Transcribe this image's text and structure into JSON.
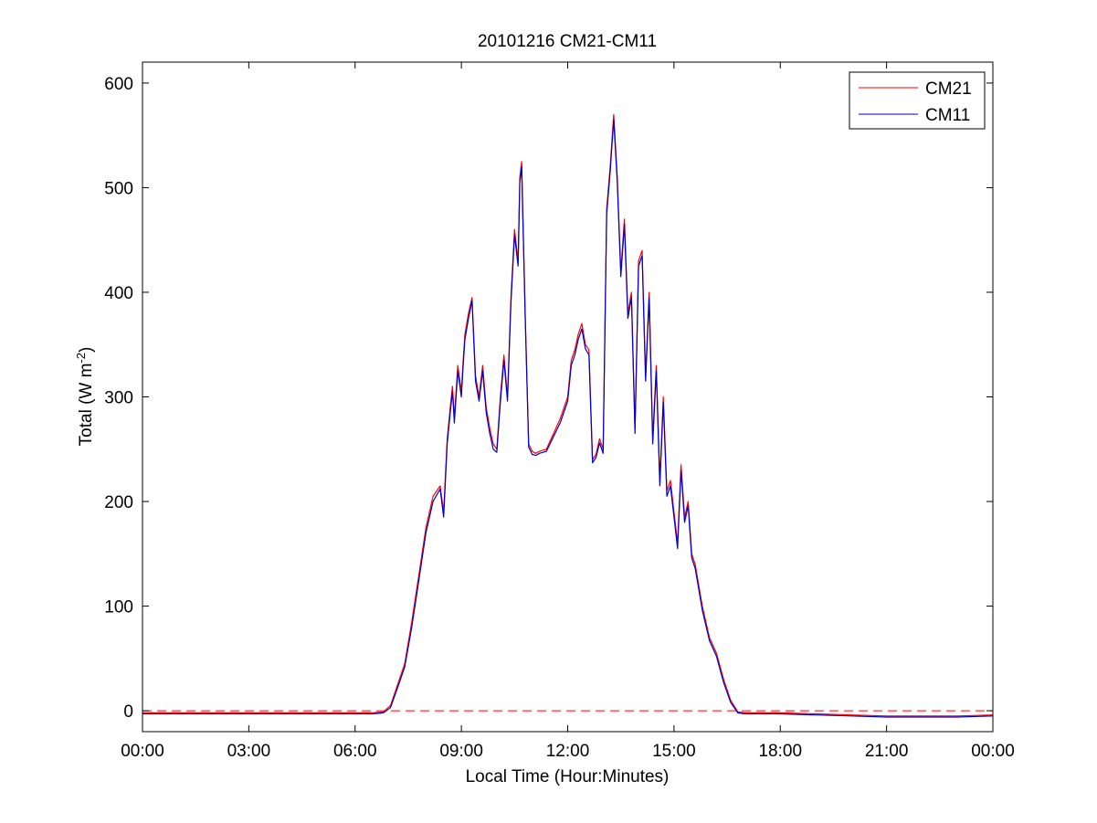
{
  "chart_data": {
    "type": "line",
    "title": "20101216 CM21-CM11",
    "xlabel": "Local Time (Hour:Minutes)",
    "ylabel": {
      "prefix": "Total (W m",
      "superscript": "-2",
      "suffix": ")"
    },
    "x_unit": "hours",
    "xlim": [
      0,
      24
    ],
    "ylim": [
      -20,
      620
    ],
    "x_ticks": [
      {
        "value": 0,
        "label": "00:00"
      },
      {
        "value": 3,
        "label": "03:00"
      },
      {
        "value": 6,
        "label": "06:00"
      },
      {
        "value": 9,
        "label": "09:00"
      },
      {
        "value": 12,
        "label": "12:00"
      },
      {
        "value": 15,
        "label": "15:00"
      },
      {
        "value": 18,
        "label": "18:00"
      },
      {
        "value": 21,
        "label": "21:00"
      },
      {
        "value": 24,
        "label": "00:00"
      }
    ],
    "y_ticks": [
      {
        "value": 0,
        "label": "0"
      },
      {
        "value": 100,
        "label": "100"
      },
      {
        "value": 200,
        "label": "200"
      },
      {
        "value": 300,
        "label": "300"
      },
      {
        "value": 400,
        "label": "400"
      },
      {
        "value": 500,
        "label": "500"
      },
      {
        "value": 600,
        "label": "600"
      }
    ],
    "grid": false,
    "legend_position": "top-right",
    "reference_line": {
      "y": 0,
      "style": "dashed",
      "color": "#ff0000"
    },
    "series": [
      {
        "name": "CM21",
        "color": "#ff0000",
        "x": [
          0,
          1,
          2,
          3,
          4,
          5,
          6,
          6.5,
          6.8,
          7,
          7.2,
          7.4,
          7.6,
          7.8,
          8,
          8.2,
          8.4,
          8.5,
          8.6,
          8.7,
          8.75,
          8.8,
          8.9,
          9,
          9.05,
          9.1,
          9.2,
          9.3,
          9.4,
          9.5,
          9.6,
          9.7,
          9.8,
          9.9,
          10,
          10.1,
          10.2,
          10.3,
          10.4,
          10.5,
          10.6,
          10.65,
          10.7,
          10.8,
          10.9,
          11,
          11.1,
          11.2,
          11.4,
          11.6,
          11.8,
          12,
          12.1,
          12.2,
          12.3,
          12.4,
          12.5,
          12.6,
          12.7,
          12.8,
          12.9,
          13,
          13.1,
          13.2,
          13.3,
          13.4,
          13.5,
          13.6,
          13.7,
          13.8,
          13.9,
          14,
          14.1,
          14.2,
          14.3,
          14.4,
          14.5,
          14.6,
          14.7,
          14.8,
          14.9,
          15,
          15.1,
          15.2,
          15.3,
          15.4,
          15.5,
          15.6,
          15.7,
          15.8,
          16,
          16.2,
          16.4,
          16.6,
          16.8,
          17,
          17.2,
          17.5,
          18,
          19,
          20,
          21,
          22,
          23,
          24
        ],
        "values": [
          -2,
          -2,
          -2,
          -2,
          -2,
          -2,
          -2,
          -2,
          -1,
          5,
          25,
          45,
          85,
          130,
          175,
          205,
          215,
          190,
          260,
          295,
          310,
          280,
          330,
          305,
          335,
          360,
          380,
          395,
          320,
          300,
          330,
          290,
          270,
          255,
          250,
          300,
          340,
          300,
          395,
          460,
          430,
          510,
          525,
          380,
          255,
          248,
          246,
          248,
          250,
          265,
          280,
          300,
          335,
          345,
          360,
          370,
          350,
          345,
          240,
          245,
          260,
          250,
          480,
          520,
          570,
          510,
          420,
          470,
          380,
          400,
          270,
          430,
          440,
          320,
          400,
          260,
          330,
          220,
          300,
          210,
          220,
          190,
          160,
          235,
          185,
          200,
          150,
          140,
          120,
          100,
          70,
          55,
          30,
          10,
          -1,
          -2,
          -2,
          -2,
          -2,
          -3,
          -4,
          -5,
          -5,
          -5,
          -4
        ]
      },
      {
        "name": "CM11",
        "color": "#0000cc",
        "x": [
          0,
          1,
          2,
          3,
          4,
          5,
          6,
          6.5,
          6.8,
          7,
          7.2,
          7.4,
          7.6,
          7.8,
          8,
          8.2,
          8.4,
          8.5,
          8.6,
          8.7,
          8.75,
          8.8,
          8.9,
          9,
          9.05,
          9.1,
          9.2,
          9.3,
          9.4,
          9.5,
          9.6,
          9.7,
          9.8,
          9.9,
          10,
          10.1,
          10.2,
          10.3,
          10.4,
          10.5,
          10.6,
          10.65,
          10.7,
          10.8,
          10.9,
          11,
          11.1,
          11.2,
          11.4,
          11.6,
          11.8,
          12,
          12.1,
          12.2,
          12.3,
          12.4,
          12.5,
          12.6,
          12.7,
          12.8,
          12.9,
          13,
          13.1,
          13.2,
          13.3,
          13.4,
          13.5,
          13.6,
          13.7,
          13.8,
          13.9,
          14,
          14.1,
          14.2,
          14.3,
          14.4,
          14.5,
          14.6,
          14.7,
          14.8,
          14.9,
          15,
          15.1,
          15.2,
          15.3,
          15.4,
          15.5,
          15.6,
          15.7,
          15.8,
          16,
          16.2,
          16.4,
          16.6,
          16.8,
          17,
          17.2,
          17.5,
          18,
          19,
          20,
          21,
          22,
          23,
          24
        ],
        "values": [
          -3,
          -3,
          -3,
          -3,
          -3,
          -3,
          -3,
          -3,
          -2,
          3,
          22,
          42,
          80,
          125,
          170,
          200,
          212,
          185,
          255,
          290,
          305,
          275,
          325,
          300,
          330,
          355,
          375,
          392,
          315,
          296,
          325,
          285,
          265,
          250,
          247,
          295,
          335,
          296,
          390,
          455,
          425,
          505,
          520,
          375,
          252,
          245,
          244,
          246,
          248,
          262,
          276,
          296,
          330,
          340,
          355,
          365,
          346,
          340,
          237,
          242,
          256,
          246,
          475,
          515,
          565,
          505,
          415,
          465,
          375,
          395,
          265,
          425,
          435,
          315,
          395,
          255,
          325,
          215,
          295,
          205,
          215,
          185,
          155,
          230,
          180,
          196,
          146,
          136,
          116,
          96,
          67,
          52,
          27,
          8,
          -2,
          -3,
          -3,
          -3,
          -3,
          -4,
          -5,
          -6,
          -6,
          -6,
          -5
        ]
      }
    ]
  }
}
